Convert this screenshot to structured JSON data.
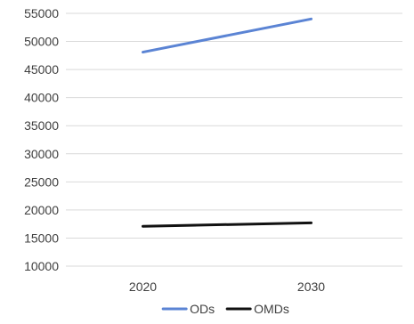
{
  "chart_data": {
    "type": "line",
    "title": "",
    "xlabel": "",
    "ylabel": "",
    "categories": [
      "2020",
      "2030"
    ],
    "ylim": [
      10000,
      55000
    ],
    "y_ticks": [
      10000,
      15000,
      20000,
      25000,
      30000,
      35000,
      40000,
      45000,
      50000,
      55000
    ],
    "y_tick_labels": [
      "10000",
      "15000",
      "20000",
      "25000",
      "30000",
      "35000",
      "40000",
      "45000",
      "50000",
      "55000"
    ],
    "grid": true,
    "legend_position": "bottom",
    "series": [
      {
        "name": "ODs",
        "values": [
          48100,
          54000
        ],
        "color": "#5b84d4"
      },
      {
        "name": "OMDs",
        "values": [
          17100,
          17700
        ],
        "color": "#111111"
      }
    ]
  }
}
